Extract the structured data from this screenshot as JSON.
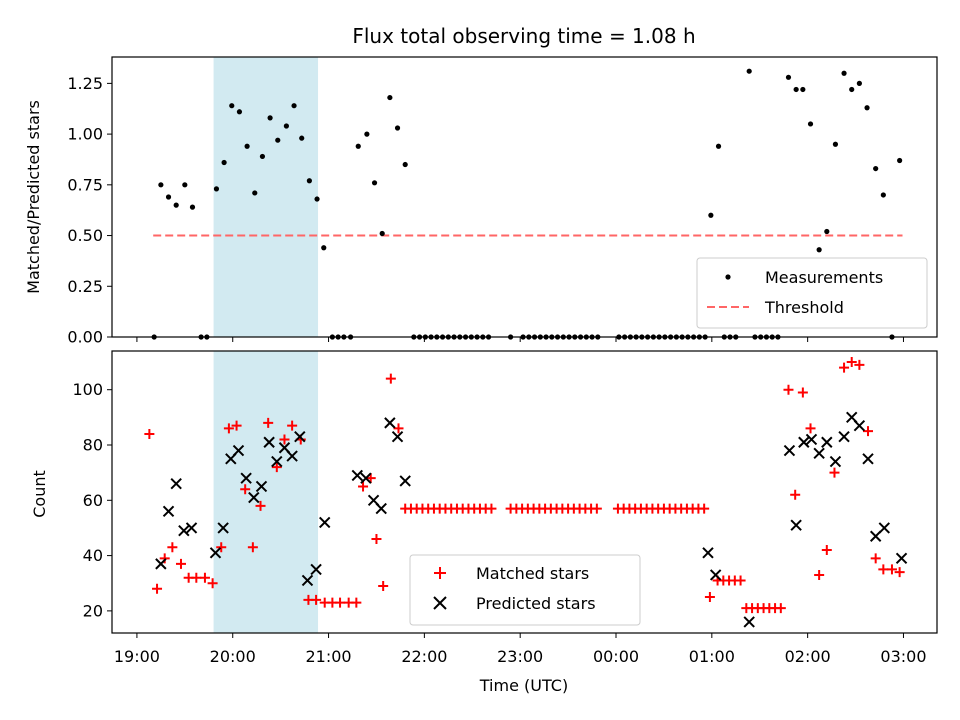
{
  "chart_data": [
    {
      "type": "scatter",
      "title": "Flux total observing time = 1.08 h",
      "ylabel": "Matched/Predicted stars",
      "xlabel": "",
      "ylim": [
        0,
        1.38
      ],
      "yticks": [
        "0.00",
        "0.25",
        "0.50",
        "0.75",
        "1.00",
        "1.25"
      ],
      "grid": false,
      "legend": "lower-right",
      "highlight_span_hours": [
        19.8,
        20.89
      ],
      "highlight_color": "#add8e6",
      "threshold": {
        "name": "Threshold",
        "value": 0.5,
        "x_range_hours": [
          19.17,
          26.99
        ],
        "color": "#ff6666"
      },
      "series": [
        {
          "name": "Measurements",
          "color": "#000000",
          "marker": "dot",
          "points": [
            [
              19.18,
              0.0
            ],
            [
              19.25,
              0.75
            ],
            [
              19.33,
              0.69
            ],
            [
              19.41,
              0.65
            ],
            [
              19.5,
              0.75
            ],
            [
              19.58,
              0.64
            ],
            [
              19.67,
              0.0
            ],
            [
              19.73,
              0.0
            ],
            [
              19.83,
              0.73
            ],
            [
              19.91,
              0.86
            ],
            [
              19.99,
              1.14
            ],
            [
              20.07,
              1.11
            ],
            [
              20.15,
              0.94
            ],
            [
              20.23,
              0.71
            ],
            [
              20.31,
              0.89
            ],
            [
              20.39,
              1.08
            ],
            [
              20.47,
              0.97
            ],
            [
              20.56,
              1.04
            ],
            [
              20.64,
              1.14
            ],
            [
              20.72,
              0.98
            ],
            [
              20.8,
              0.77
            ],
            [
              20.88,
              0.68
            ],
            [
              20.95,
              0.44
            ],
            [
              21.04,
              0.0
            ],
            [
              21.1,
              0.0
            ],
            [
              21.16,
              0.0
            ],
            [
              21.23,
              0.0
            ],
            [
              21.31,
              0.94
            ],
            [
              21.4,
              1.0
            ],
            [
              21.48,
              0.76
            ],
            [
              21.56,
              0.51
            ],
            [
              21.64,
              1.18
            ],
            [
              21.72,
              1.03
            ],
            [
              21.8,
              0.85
            ],
            [
              21.89,
              0.0
            ],
            [
              21.95,
              0.0
            ],
            [
              22.01,
              0.0
            ],
            [
              22.07,
              0.0
            ],
            [
              22.13,
              0.0
            ],
            [
              22.19,
              0.0
            ],
            [
              22.25,
              0.0
            ],
            [
              22.31,
              0.0
            ],
            [
              22.37,
              0.0
            ],
            [
              22.43,
              0.0
            ],
            [
              22.49,
              0.0
            ],
            [
              22.55,
              0.0
            ],
            [
              22.61,
              0.0
            ],
            [
              22.67,
              0.0
            ],
            [
              22.9,
              0.0
            ],
            [
              23.03,
              0.0
            ],
            [
              23.09,
              0.0
            ],
            [
              23.15,
              0.0
            ],
            [
              23.21,
              0.0
            ],
            [
              23.27,
              0.0
            ],
            [
              23.33,
              0.0
            ],
            [
              23.39,
              0.0
            ],
            [
              23.45,
              0.0
            ],
            [
              23.51,
              0.0
            ],
            [
              23.57,
              0.0
            ],
            [
              23.63,
              0.0
            ],
            [
              23.69,
              0.0
            ],
            [
              23.75,
              0.0
            ],
            [
              23.81,
              0.0
            ],
            [
              24.03,
              0.0
            ],
            [
              24.09,
              0.0
            ],
            [
              24.15,
              0.0
            ],
            [
              24.21,
              0.0
            ],
            [
              24.27,
              0.0
            ],
            [
              24.33,
              0.0
            ],
            [
              24.39,
              0.0
            ],
            [
              24.45,
              0.0
            ],
            [
              24.51,
              0.0
            ],
            [
              24.57,
              0.0
            ],
            [
              24.63,
              0.0
            ],
            [
              24.69,
              0.0
            ],
            [
              24.75,
              0.0
            ],
            [
              24.81,
              0.0
            ],
            [
              24.87,
              0.0
            ],
            [
              24.93,
              0.0
            ],
            [
              24.99,
              0.6
            ],
            [
              25.07,
              0.94
            ],
            [
              25.13,
              0.0
            ],
            [
              25.19,
              0.0
            ],
            [
              25.25,
              0.0
            ],
            [
              25.39,
              1.31
            ],
            [
              25.45,
              0.0
            ],
            [
              25.51,
              0.0
            ],
            [
              25.57,
              0.0
            ],
            [
              25.63,
              0.0
            ],
            [
              25.69,
              0.0
            ],
            [
              25.8,
              1.28
            ],
            [
              25.88,
              1.22
            ],
            [
              25.95,
              1.22
            ],
            [
              26.03,
              1.05
            ],
            [
              26.12,
              0.43
            ],
            [
              26.2,
              0.52
            ],
            [
              26.29,
              0.95
            ],
            [
              26.38,
              1.3
            ],
            [
              26.46,
              1.22
            ],
            [
              26.54,
              1.25
            ],
            [
              26.62,
              1.13
            ],
            [
              26.71,
              0.83
            ],
            [
              26.79,
              0.7
            ],
            [
              26.88,
              0.0
            ],
            [
              26.96,
              0.87
            ]
          ]
        }
      ]
    },
    {
      "type": "scatter",
      "title": "",
      "ylabel": "Count",
      "xlabel": "Time (UTC)",
      "ylim": [
        12,
        114
      ],
      "yticks": [
        "20",
        "40",
        "60",
        "80",
        "100"
      ],
      "xticks": [
        "19:00",
        "20:00",
        "21:00",
        "22:00",
        "23:00",
        "00:00",
        "01:00",
        "02:00",
        "03:00"
      ],
      "xlim_hours": [
        18.74,
        27.35
      ],
      "grid": false,
      "legend": "lower-center",
      "highlight_span_hours": [
        19.8,
        20.89
      ],
      "highlight_color": "#add8e6",
      "series": [
        {
          "name": "Matched stars",
          "color": "#ff0000",
          "marker": "plus",
          "points": [
            [
              19.13,
              84
            ],
            [
              19.21,
              28
            ],
            [
              19.29,
              39
            ],
            [
              19.37,
              43
            ],
            [
              19.46,
              37
            ],
            [
              19.54,
              32
            ],
            [
              19.62,
              32
            ],
            [
              19.71,
              32
            ],
            [
              19.79,
              30
            ],
            [
              19.88,
              43
            ],
            [
              19.96,
              86
            ],
            [
              20.04,
              87
            ],
            [
              20.13,
              64
            ],
            [
              20.21,
              43
            ],
            [
              20.29,
              58
            ],
            [
              20.37,
              88
            ],
            [
              20.46,
              72
            ],
            [
              20.54,
              82
            ],
            [
              20.62,
              87
            ],
            [
              20.71,
              82
            ],
            [
              20.79,
              24
            ],
            [
              20.87,
              24
            ],
            [
              20.96,
              23
            ],
            [
              21.04,
              23
            ],
            [
              21.12,
              23
            ],
            [
              21.21,
              23
            ],
            [
              21.29,
              23
            ],
            [
              21.36,
              65
            ],
            [
              21.44,
              68
            ],
            [
              21.5,
              46
            ],
            [
              21.57,
              29
            ],
            [
              21.65,
              104
            ],
            [
              21.73,
              86
            ],
            [
              21.8,
              57
            ],
            [
              21.86,
              57
            ],
            [
              21.92,
              57
            ],
            [
              21.98,
              57
            ],
            [
              22.04,
              57
            ],
            [
              22.1,
              57
            ],
            [
              22.16,
              57
            ],
            [
              22.22,
              57
            ],
            [
              22.28,
              57
            ],
            [
              22.34,
              57
            ],
            [
              22.4,
              57
            ],
            [
              22.46,
              57
            ],
            [
              22.52,
              57
            ],
            [
              22.58,
              57
            ],
            [
              22.64,
              57
            ],
            [
              22.7,
              57
            ],
            [
              22.9,
              57
            ],
            [
              22.96,
              57
            ],
            [
              23.02,
              57
            ],
            [
              23.08,
              57
            ],
            [
              23.14,
              57
            ],
            [
              23.2,
              57
            ],
            [
              23.26,
              57
            ],
            [
              23.32,
              57
            ],
            [
              23.38,
              57
            ],
            [
              23.44,
              57
            ],
            [
              23.5,
              57
            ],
            [
              23.56,
              57
            ],
            [
              23.62,
              57
            ],
            [
              23.68,
              57
            ],
            [
              23.74,
              57
            ],
            [
              23.8,
              57
            ],
            [
              24.02,
              57
            ],
            [
              24.08,
              57
            ],
            [
              24.14,
              57
            ],
            [
              24.2,
              57
            ],
            [
              24.26,
              57
            ],
            [
              24.32,
              57
            ],
            [
              24.38,
              57
            ],
            [
              24.44,
              57
            ],
            [
              24.5,
              57
            ],
            [
              24.56,
              57
            ],
            [
              24.62,
              57
            ],
            [
              24.68,
              57
            ],
            [
              24.74,
              57
            ],
            [
              24.8,
              57
            ],
            [
              24.86,
              57
            ],
            [
              24.92,
              57
            ],
            [
              24.98,
              25
            ],
            [
              25.06,
              31
            ],
            [
              25.12,
              31
            ],
            [
              25.18,
              31
            ],
            [
              25.24,
              31
            ],
            [
              25.3,
              31
            ],
            [
              25.36,
              21
            ],
            [
              25.42,
              21
            ],
            [
              25.48,
              21
            ],
            [
              25.54,
              21
            ],
            [
              25.6,
              21
            ],
            [
              25.66,
              21
            ],
            [
              25.72,
              21
            ],
            [
              25.8,
              100
            ],
            [
              25.87,
              62
            ],
            [
              25.95,
              99
            ],
            [
              26.03,
              86
            ],
            [
              26.12,
              33
            ],
            [
              26.2,
              42
            ],
            [
              26.28,
              70
            ],
            [
              26.38,
              108
            ],
            [
              26.46,
              110
            ],
            [
              26.54,
              109
            ],
            [
              26.63,
              85
            ],
            [
              26.71,
              39
            ],
            [
              26.79,
              35
            ],
            [
              26.88,
              35
            ],
            [
              26.96,
              34
            ]
          ]
        },
        {
          "name": "Predicted stars",
          "color": "#000000",
          "marker": "x",
          "points": [
            [
              19.25,
              37
            ],
            [
              19.33,
              56
            ],
            [
              19.41,
              66
            ],
            [
              19.49,
              49
            ],
            [
              19.57,
              50
            ],
            [
              19.82,
              41
            ],
            [
              19.9,
              50
            ],
            [
              19.98,
              75
            ],
            [
              20.06,
              78
            ],
            [
              20.14,
              68
            ],
            [
              20.22,
              61
            ],
            [
              20.3,
              65
            ],
            [
              20.38,
              81
            ],
            [
              20.46,
              74
            ],
            [
              20.54,
              79
            ],
            [
              20.62,
              76
            ],
            [
              20.7,
              83
            ],
            [
              20.78,
              31
            ],
            [
              20.87,
              35
            ],
            [
              20.96,
              52
            ],
            [
              21.3,
              69
            ],
            [
              21.39,
              68
            ],
            [
              21.47,
              60
            ],
            [
              21.55,
              57
            ],
            [
              21.64,
              88
            ],
            [
              21.72,
              83
            ],
            [
              21.8,
              67
            ],
            [
              24.96,
              41
            ],
            [
              25.04,
              33
            ],
            [
              25.39,
              16
            ],
            [
              25.81,
              78
            ],
            [
              25.88,
              51
            ],
            [
              25.96,
              81
            ],
            [
              26.04,
              82
            ],
            [
              26.12,
              77
            ],
            [
              26.2,
              81
            ],
            [
              26.29,
              74
            ],
            [
              26.38,
              83
            ],
            [
              26.46,
              90
            ],
            [
              26.54,
              87
            ],
            [
              26.63,
              75
            ],
            [
              26.71,
              47
            ],
            [
              26.8,
              50
            ],
            [
              26.98,
              39
            ]
          ]
        }
      ]
    }
  ]
}
